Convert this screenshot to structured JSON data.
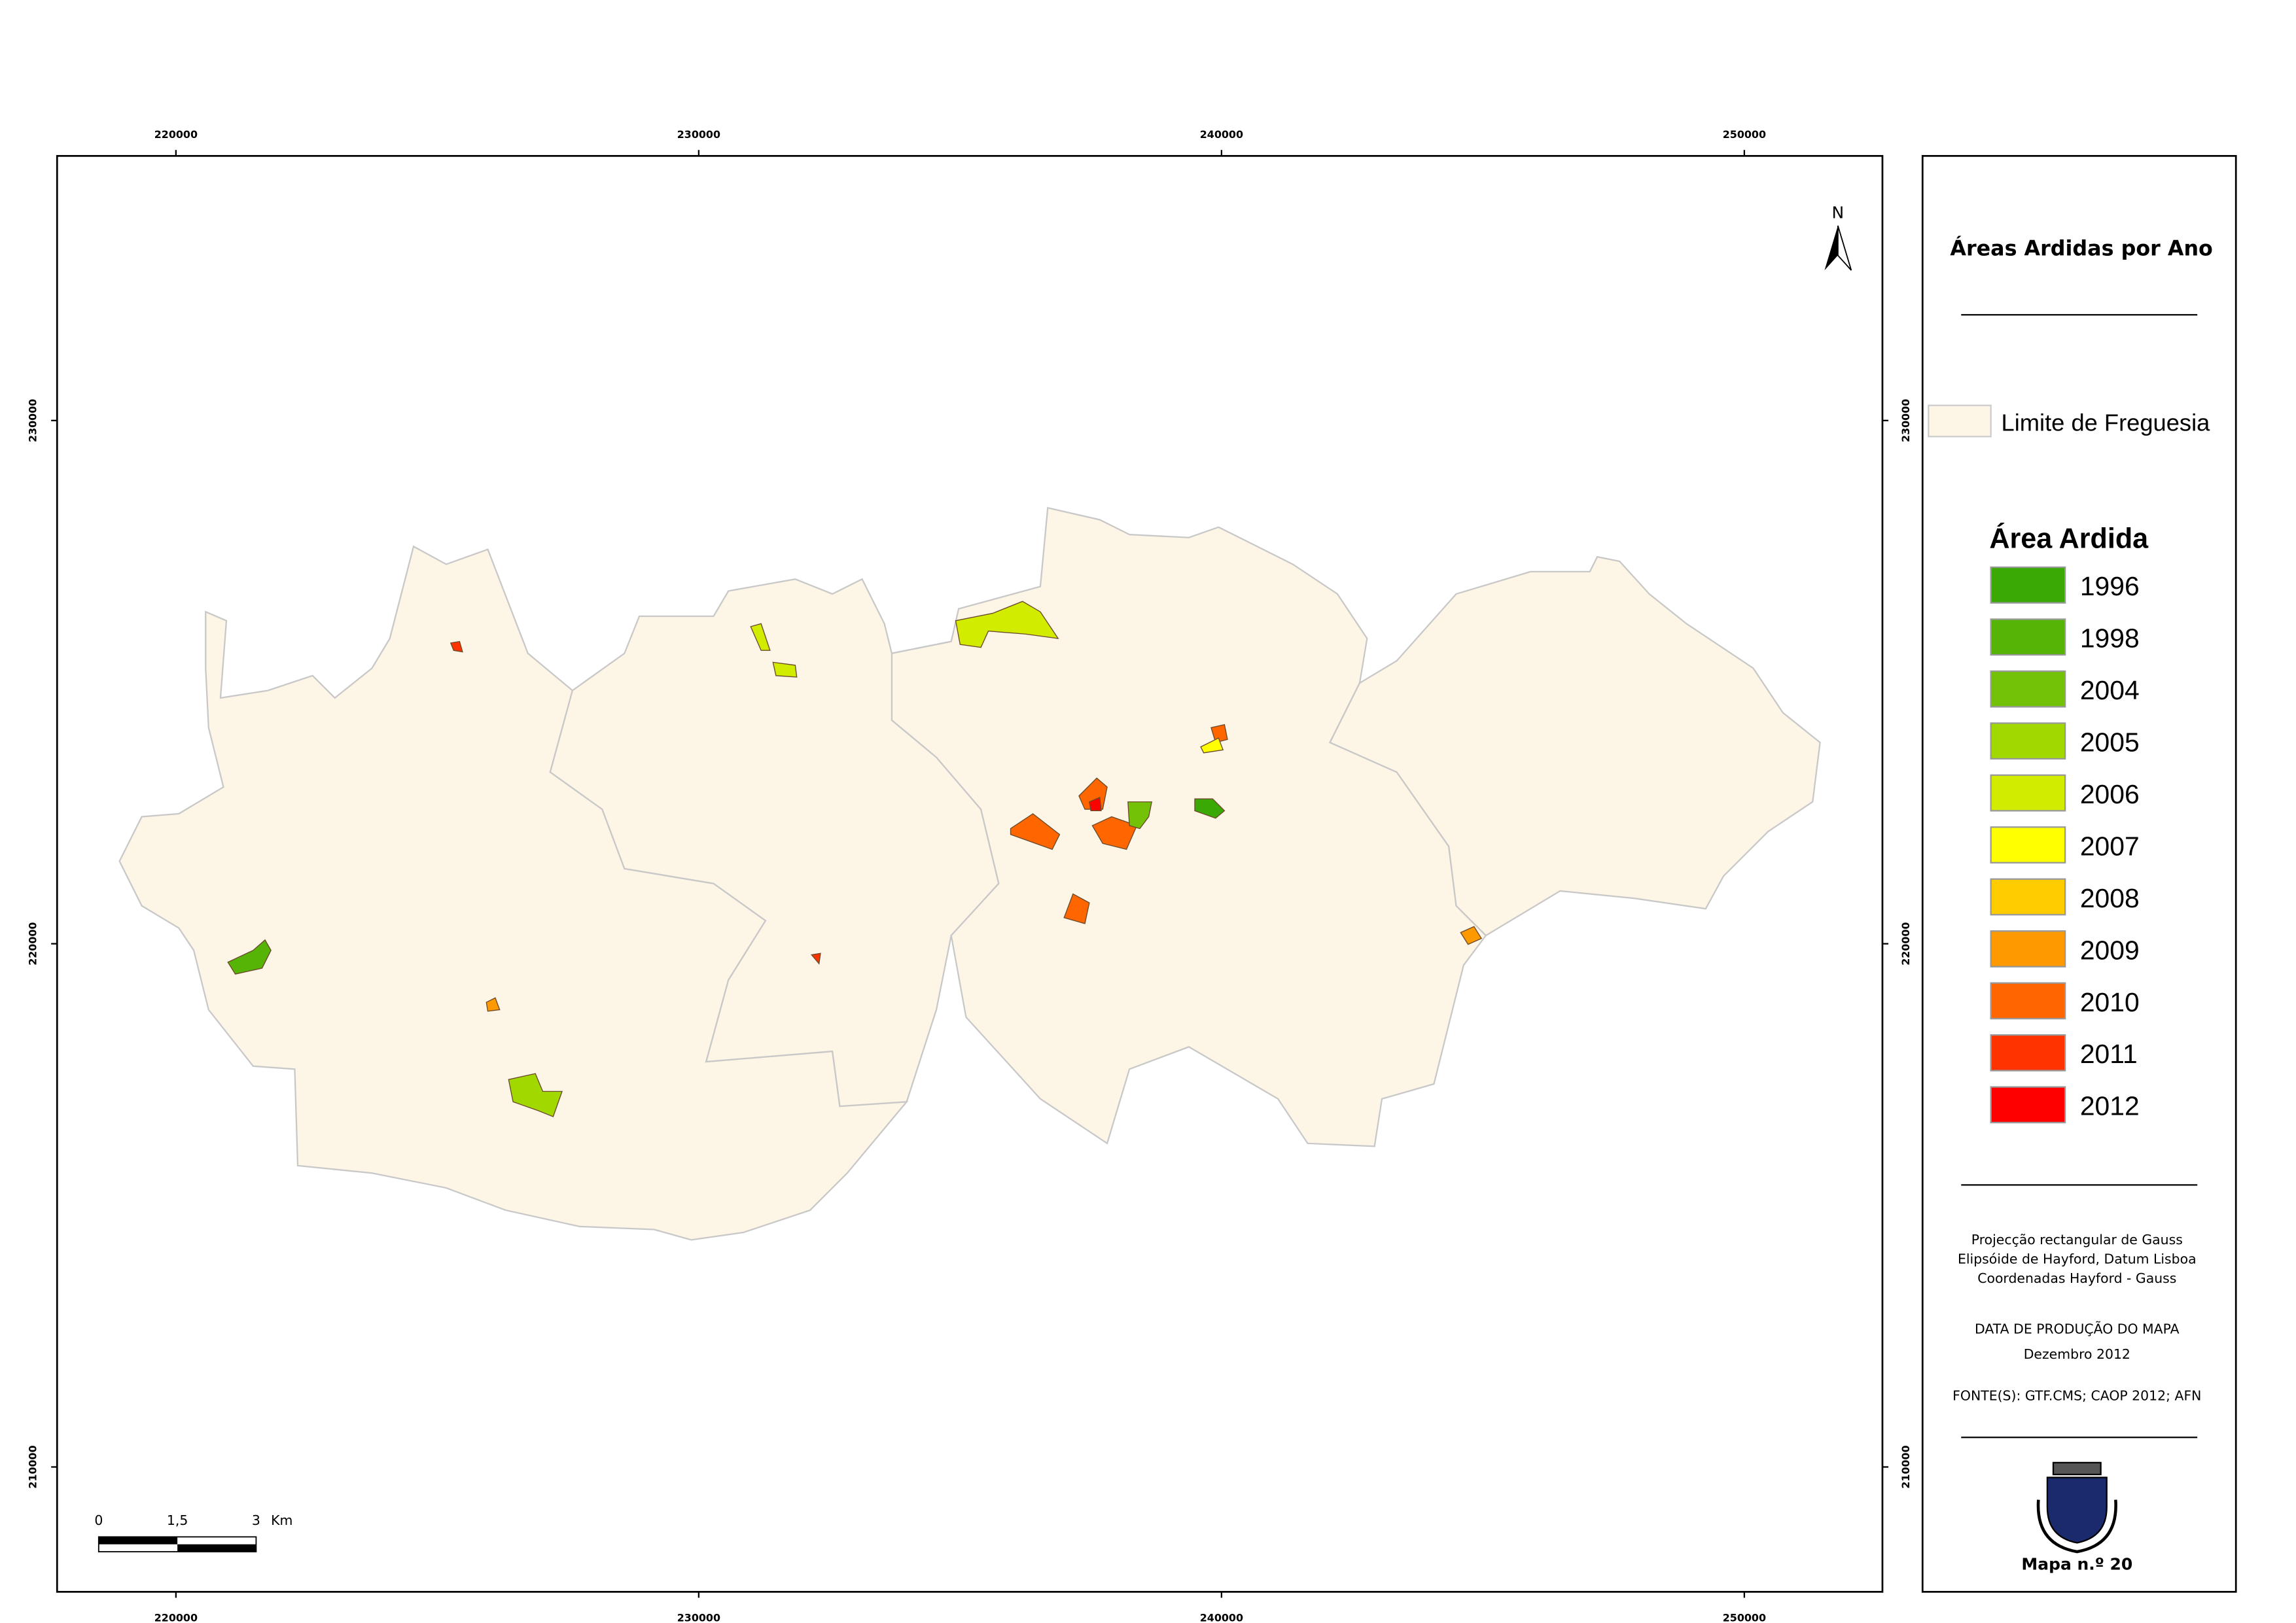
{
  "map": {
    "north_label": "N",
    "xlim": [
      217727,
      252642
    ],
    "ylim": [
      207614,
      235057
    ],
    "x_ticks": [
      220000,
      230000,
      240000,
      250000
    ],
    "y_ticks": [
      230000,
      220000,
      210000
    ]
  },
  "scale_bar": {
    "labels": [
      "0",
      "1,5",
      "3"
    ],
    "unit": "Km"
  },
  "legend": {
    "title": "Áreas Ardidas por Ano",
    "boundary_label": "Limite de Freguesia",
    "boundary_color": "#fdf5e6",
    "section_title": "Área Ardida",
    "items": [
      {
        "label": "1996",
        "color": "#3aa805"
      },
      {
        "label": "1998",
        "color": "#56b406"
      },
      {
        "label": "2004",
        "color": "#74c208"
      },
      {
        "label": "2005",
        "color": "#a1d800"
      },
      {
        "label": "2006",
        "color": "#d2ec00"
      },
      {
        "label": "2007",
        "color": "#ffff00"
      },
      {
        "label": "2008",
        "color": "#ffcc00"
      },
      {
        "label": "2009",
        "color": "#ff9900"
      },
      {
        "label": "2010",
        "color": "#ff6600"
      },
      {
        "label": "2011",
        "color": "#ff3300"
      },
      {
        "label": "2012",
        "color": "#ff0000"
      }
    ],
    "projection": [
      "Projecção rectangular de Gauss",
      "Elipsóide de Hayford, Datum Lisboa",
      "Coordenadas Hayford - Gauss"
    ],
    "production": [
      "DATA DE PRODUÇÃO DO MAPA",
      "Dezembro 2012"
    ],
    "sources": "FONTE(S): GTF.CMS; CAOP 2012; AFN",
    "map_number": "Mapa n.º 20"
  }
}
